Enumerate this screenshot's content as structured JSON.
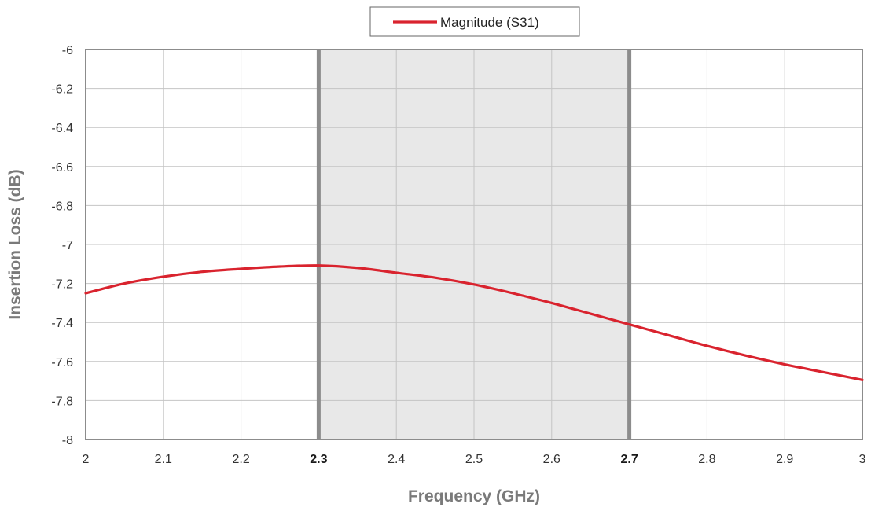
{
  "chart_data": {
    "type": "line",
    "title": "",
    "xlabel": "Frequency (GHz)",
    "ylabel": "Insertion Loss (dB)",
    "xlim": [
      2,
      3
    ],
    "ylim": [
      -8,
      -6
    ],
    "x_ticks": [
      2,
      2.1,
      2.2,
      2.3,
      2.4,
      2.5,
      2.6,
      2.7,
      2.8,
      2.9,
      3
    ],
    "x_tick_labels": [
      "2",
      "2.1",
      "2.2",
      "2.3",
      "2.4",
      "2.5",
      "2.6",
      "2.7",
      "2.8",
      "2.9",
      "3"
    ],
    "x_bold_ticks": [
      2.3,
      2.7
    ],
    "y_ticks": [
      -6,
      -6.2,
      -6.4,
      -6.6,
      -6.8,
      -7,
      -7.2,
      -7.4,
      -7.6,
      -7.8,
      -8
    ],
    "y_tick_labels": [
      "-6",
      "-6.2",
      "-6.4",
      "-6.6",
      "-6.8",
      "-7",
      "-7.2",
      "-7.4",
      "-7.6",
      "-7.8",
      "-8"
    ],
    "grid": true,
    "legend_position": "top-center",
    "highlight_band": {
      "x_start": 2.3,
      "x_end": 2.7,
      "color": "#e8e8e8",
      "edge_color": "#8c8c8c"
    },
    "series": [
      {
        "name": "Magnitude (S31)",
        "color": "#d9232e",
        "x": [
          2.0,
          2.05,
          2.1,
          2.15,
          2.2,
          2.25,
          2.3,
          2.35,
          2.4,
          2.45,
          2.5,
          2.55,
          2.6,
          2.65,
          2.7,
          2.75,
          2.8,
          2.85,
          2.9,
          2.95,
          3.0
        ],
        "y": [
          -7.25,
          -7.2,
          -7.165,
          -7.14,
          -7.125,
          -7.113,
          -7.108,
          -7.12,
          -7.145,
          -7.17,
          -7.205,
          -7.25,
          -7.3,
          -7.355,
          -7.41,
          -7.465,
          -7.52,
          -7.57,
          -7.615,
          -7.655,
          -7.695
        ]
      }
    ]
  }
}
